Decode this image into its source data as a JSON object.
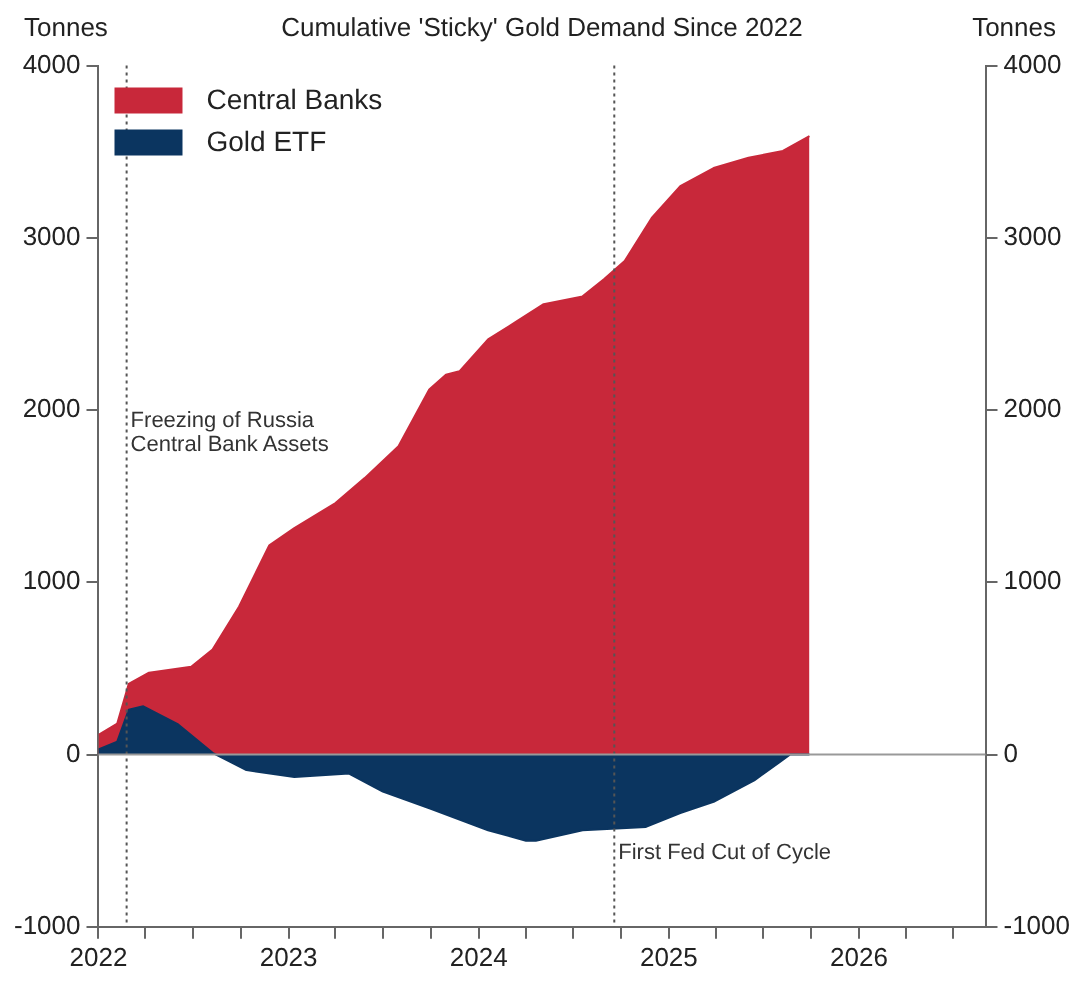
{
  "chart_data": {
    "type": "area",
    "title": "Cumulative 'Sticky' Gold Demand Since 2022",
    "ylabel": "Tonnes",
    "y2label": "Tonnes",
    "series": [
      {
        "name": "Central Banks",
        "color": "#c8283a",
        "x": [
          "2022-01-01",
          "2022-02-06",
          "2022-02-28",
          "2022-04-08",
          "2022-06-28",
          "2022-08-08",
          "2022-09-28",
          "2022-11-25",
          "2023-01-12",
          "2023-04-01",
          "2023-05-27",
          "2023-07-31",
          "2023-09-28",
          "2023-10-30",
          "2023-11-25",
          "2024-01-19",
          "2024-03-14",
          "2024-05-05",
          "2024-07-19",
          "2024-08-29",
          "2024-10-08",
          "2024-11-29",
          "2025-01-23",
          "2025-03-28",
          "2025-06-03",
          "2025-08-08",
          "2025-09-28"
        ],
        "values": [
          115,
          180,
          410,
          475,
          510,
          610,
          860,
          1215,
          1315,
          1460,
          1605,
          1790,
          2120,
          2205,
          2225,
          2410,
          2515,
          2615,
          2660,
          2760,
          2865,
          3115,
          3300,
          3405,
          3465,
          3505,
          3590
        ]
      },
      {
        "name": "Gold ETF",
        "color": "#0b3560",
        "x": [
          "2022-01-01",
          "2022-02-06",
          "2022-02-28",
          "2022-03-28",
          "2022-06-03",
          "2022-08-08",
          "2022-10-12",
          "2023-01-12",
          "2023-04-27",
          "2023-07-01",
          "2023-10-01",
          "2024-01-19",
          "2024-04-01",
          "2024-04-20",
          "2024-07-19",
          "2024-11-18",
          "2025-01-23",
          "2025-03-28",
          "2025-06-14",
          "2025-08-22",
          "2025-09-28"
        ],
        "values": [
          30,
          75,
          260,
          280,
          175,
          10,
          -90,
          -130,
          -110,
          -215,
          -315,
          -440,
          -500,
          -500,
          -440,
          -420,
          -340,
          -275,
          -150,
          0,
          0
        ]
      }
    ],
    "xlim": [
      "2022-01-01",
      "2026-09-01"
    ],
    "xticks": [
      {
        "value": "2022-01-01",
        "label": "2022"
      },
      {
        "value": "2022-04-01",
        "label": null
      },
      {
        "value": "2022-07-01",
        "label": null
      },
      {
        "value": "2022-10-01",
        "label": null
      },
      {
        "value": "2023-01-01",
        "label": "2023"
      },
      {
        "value": "2023-04-01",
        "label": null
      },
      {
        "value": "2023-07-01",
        "label": null
      },
      {
        "value": "2023-10-01",
        "label": null
      },
      {
        "value": "2024-01-01",
        "label": "2024"
      },
      {
        "value": "2024-04-01",
        "label": null
      },
      {
        "value": "2024-07-01",
        "label": null
      },
      {
        "value": "2024-10-01",
        "label": null
      },
      {
        "value": "2025-01-01",
        "label": "2025"
      },
      {
        "value": "2025-04-01",
        "label": null
      },
      {
        "value": "2025-07-01",
        "label": null
      },
      {
        "value": "2025-10-01",
        "label": null
      },
      {
        "value": "2026-01-01",
        "label": "2026"
      },
      {
        "value": "2026-04-01",
        "label": null
      },
      {
        "value": "2026-07-01",
        "label": null
      }
    ],
    "ylim": [
      -1000,
      4000
    ],
    "yticks": [
      -1000,
      0,
      1000,
      2000,
      3000,
      4000
    ],
    "y2lim": [
      -1000,
      4000
    ],
    "y2ticks": [
      -1000,
      0,
      1000,
      2000,
      3000,
      4000
    ],
    "ref_lines": [
      {
        "axis": "x",
        "value": "2022-02-24",
        "label": "Freezing of Russia Central Bank Assets",
        "color": "#555555",
        "line_style": "dotted"
      },
      {
        "axis": "x",
        "value": "2024-09-18",
        "label": "First Fed Cut of Cycle",
        "color": "#555555",
        "line_style": "dotted"
      },
      {
        "axis": "y",
        "value": 0,
        "color": "#999999",
        "line_style": "solid"
      }
    ],
    "legend": "top left",
    "grid": false
  }
}
